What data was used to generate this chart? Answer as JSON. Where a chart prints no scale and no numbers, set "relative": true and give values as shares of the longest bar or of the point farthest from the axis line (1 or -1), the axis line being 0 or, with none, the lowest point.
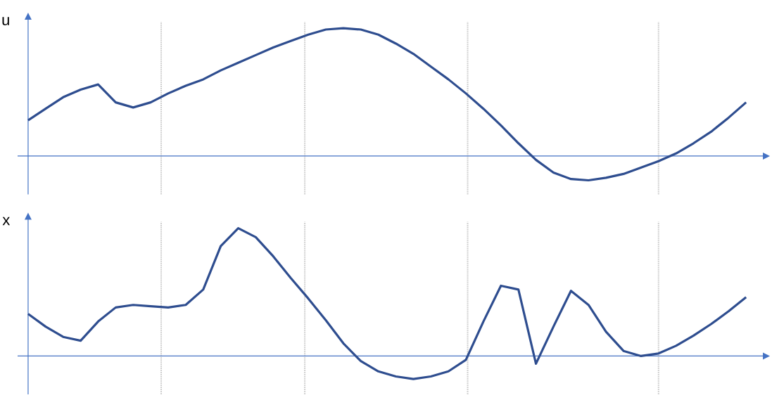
{
  "chart_data": [
    {
      "type": "line",
      "ylabel": "u",
      "relative": true,
      "marker": "none",
      "line_style": "solid",
      "categories": [
        null,
        null,
        null,
        null,
        null,
        null,
        null,
        null,
        null,
        null,
        null,
        null,
        null,
        null,
        null,
        null,
        null,
        null,
        null,
        null,
        null,
        null,
        null,
        null,
        null,
        null,
        null,
        null,
        null,
        null,
        null,
        null,
        null,
        null,
        null,
        null,
        null,
        null,
        null,
        null,
        null,
        null
      ],
      "series": [
        {
          "color": "#2e4d8f",
          "values": [
            0.28,
            0.37,
            0.46,
            0.52,
            0.56,
            0.42,
            0.38,
            0.42,
            0.49,
            0.55,
            0.6,
            0.67,
            0.73,
            0.79,
            0.85,
            0.9,
            0.95,
            0.99,
            1,
            0.99,
            0.95,
            0.88,
            0.8,
            0.7,
            0.6,
            0.49,
            0.37,
            0.24,
            0.1,
            -0.03,
            -0.13,
            -0.18,
            -0.19,
            -0.17,
            -0.14,
            -0.09,
            -0.04,
            0.02,
            0.1,
            0.19,
            0.3,
            0.42
          ]
        }
      ],
      "ref_lines": [
        {
          "axis": "y",
          "value": 0,
          "color": "#4472c4",
          "line_style": "solid"
        }
      ]
    },
    {
      "type": "line",
      "ylabel": "x",
      "relative": true,
      "marker": "none",
      "line_style": "solid",
      "categories": [
        null,
        null,
        null,
        null,
        null,
        null,
        null,
        null,
        null,
        null,
        null,
        null,
        null,
        null,
        null,
        null,
        null,
        null,
        null,
        null,
        null,
        null,
        null,
        null,
        null,
        null,
        null,
        null,
        null,
        null,
        null,
        null,
        null,
        null,
        null,
        null,
        null,
        null,
        null,
        null,
        null,
        null
      ],
      "series": [
        {
          "color": "#2e4d8f",
          "values": [
            0.33,
            0.23,
            0.15,
            0.12,
            0.27,
            0.38,
            0.4,
            0.39,
            0.38,
            0.4,
            0.52,
            0.86,
            1,
            0.93,
            0.78,
            0.61,
            0.45,
            0.28,
            0.1,
            -0.04,
            -0.12,
            -0.16,
            -0.18,
            -0.16,
            -0.12,
            -0.03,
            0.27,
            0.55,
            0.52,
            -0.06,
            0.23,
            0.51,
            0.4,
            0.19,
            0.04,
            0,
            0.02,
            0.08,
            0.16,
            0.25,
            0.35,
            0.46
          ]
        }
      ],
      "ref_lines": [
        {
          "axis": "y",
          "value": 0,
          "color": "#4472c4",
          "line_style": "solid"
        }
      ]
    }
  ]
}
